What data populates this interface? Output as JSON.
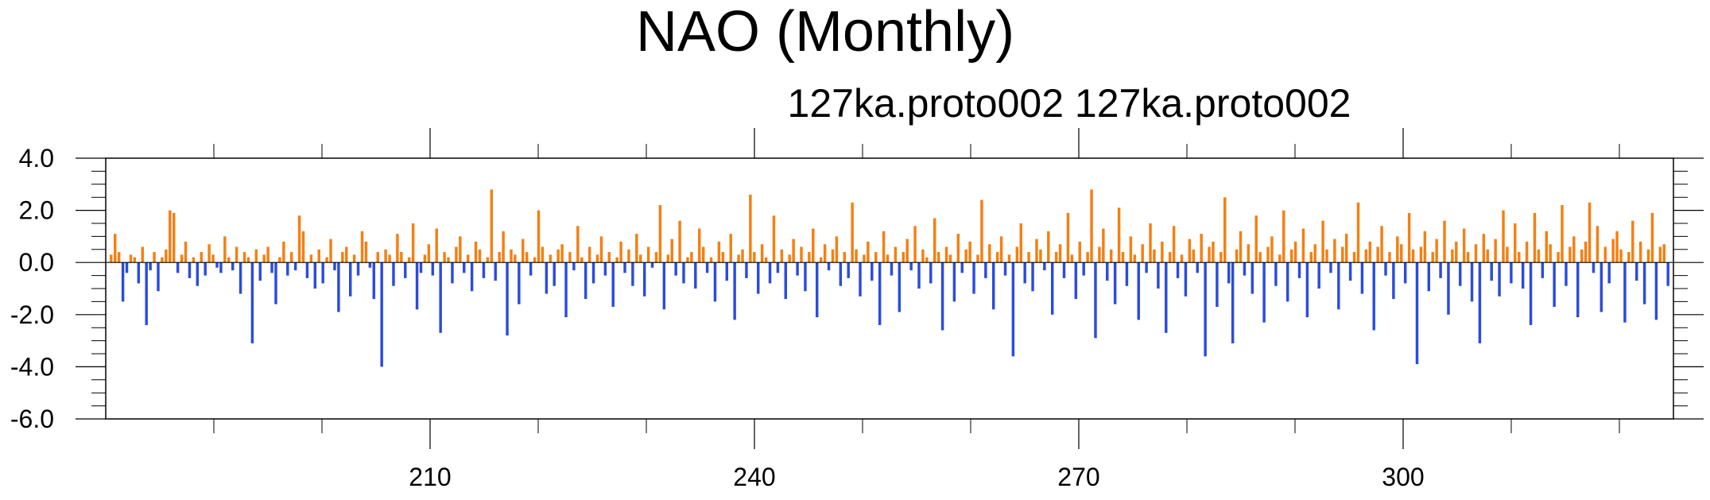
{
  "chart_data": {
    "type": "bar",
    "title": "NAO (Monthly)",
    "subtitle": "127ka.proto002  127ka.proto002",
    "xlim": [
      180,
      325
    ],
    "ylim": [
      -6.0,
      4.0
    ],
    "x_ticks": [
      210,
      240,
      270,
      300
    ],
    "y_ticks": [
      "4.0",
      "2.0",
      "0.0",
      "-2.0",
      "-4.0",
      "-6.0"
    ],
    "y_tick_values": [
      4.0,
      2.0,
      0.0,
      -2.0,
      -4.0,
      -6.0
    ],
    "colors": {
      "positive": "#f57f10",
      "negative": "#2a4be0",
      "axis": "#000000"
    },
    "sampling": "monthly",
    "series": [
      {
        "values": [
          0.3,
          1.1,
          0.4,
          -1.5,
          -0.4,
          0.3,
          0.2,
          -0.8,
          0.6,
          -2.4,
          -0.3,
          0.4,
          -1.1,
          0.2,
          0.5,
          2.0,
          1.9,
          -0.4,
          0.3,
          0.8,
          -0.6,
          0.2,
          -0.9,
          0.4,
          -0.5,
          0.7,
          0.3,
          -0.2,
          -0.4,
          1.0,
          0.2,
          -0.3,
          0.6,
          -1.2,
          0.4,
          0.2,
          -3.1,
          0.5,
          -0.7,
          0.3,
          0.6,
          -0.4,
          -1.6,
          0.2,
          0.8,
          -0.5,
          0.4,
          -0.3,
          1.8,
          1.2,
          -0.6,
          0.3,
          -1.0,
          0.5,
          -0.8,
          0.2,
          0.9,
          -0.3,
          -1.9,
          0.4,
          0.6,
          -1.3,
          0.3,
          -0.5,
          1.2,
          0.8,
          -0.2,
          -1.4,
          0.4,
          -4.0,
          0.5,
          0.3,
          -0.9,
          1.1,
          0.4,
          -0.6,
          0.2,
          1.5,
          -1.8,
          -0.4,
          0.3,
          0.7,
          -0.5,
          1.3,
          -2.7,
          0.4,
          0.2,
          -0.8,
          0.6,
          1.0,
          -0.4,
          0.3,
          -1.1,
          0.8,
          0.5,
          -0.6,
          0.2,
          2.8,
          -0.7,
          0.4,
          1.2,
          -2.8,
          0.5,
          0.3,
          -1.6,
          0.9,
          0.4,
          -0.5,
          0.2,
          2.0,
          0.6,
          -1.2,
          0.3,
          -0.9,
          0.5,
          0.7,
          -2.1,
          0.4,
          -0.3,
          1.4,
          0.2,
          -1.4,
          0.6,
          -0.8,
          0.3,
          1.0,
          -0.5,
          0.4,
          -1.7,
          0.2,
          0.8,
          -0.4,
          0.5,
          -0.9,
          1.1,
          0.3,
          -1.3,
          0.6,
          -0.2,
          0.4,
          2.2,
          -1.8,
          0.3,
          0.9,
          -0.5,
          1.6,
          -0.8,
          0.2,
          0.4,
          -1.0,
          1.3,
          0.6,
          -0.4,
          0.2,
          -1.5,
          0.8,
          0.4,
          -0.7,
          1.1,
          -2.2,
          0.3,
          0.5,
          -0.6,
          2.6,
          0.4,
          -1.2,
          0.7,
          0.2,
          -0.8,
          1.8,
          -0.4,
          0.5,
          -1.4,
          0.3,
          0.9,
          -0.5,
          0.6,
          -1.1,
          0.4,
          1.3,
          -2.1,
          0.2,
          0.7,
          -0.3,
          0.5,
          1.0,
          -0.9,
          0.4,
          -0.6,
          2.3,
          0.5,
          -1.3,
          0.3,
          0.8,
          -0.7,
          0.4,
          -2.4,
          1.2,
          0.3,
          -0.5,
          0.6,
          -1.9,
          0.4,
          0.9,
          -0.3,
          1.4,
          -1.0,
          0.5,
          0.2,
          -0.8,
          1.7,
          0.4,
          -2.6,
          0.6,
          0.3,
          -1.5,
          1.1,
          -0.4,
          0.5,
          0.8,
          -1.2,
          0.3,
          2.4,
          -0.6,
          0.7,
          -1.8,
          0.4,
          1.0,
          -0.5,
          0.3,
          -3.6,
          0.6,
          1.5,
          -0.8,
          0.4,
          -1.1,
          0.9,
          0.5,
          -0.3,
          1.2,
          -2.0,
          0.4,
          0.7,
          -0.6,
          1.9,
          0.3,
          -1.4,
          0.8,
          -0.5,
          0.4,
          2.8,
          -2.9,
          0.6,
          1.3,
          -0.7,
          0.5,
          -1.6,
          2.1,
          0.4,
          -0.9,
          1.0,
          0.3,
          -2.2,
          0.7,
          -0.4,
          1.5,
          0.5,
          -1.0,
          0.8,
          -2.7,
          0.4,
          1.4,
          -0.6,
          0.3,
          -1.3,
          0.9,
          0.5,
          -0.4,
          1.1,
          -3.6,
          0.6,
          0.8,
          -1.7,
          0.4,
          2.5,
          -0.8,
          -3.1,
          0.5,
          1.2,
          -0.5,
          0.7,
          -1.2,
          1.8,
          0.4,
          -2.3,
          0.6,
          1.0,
          -0.9,
          0.3,
          2.0,
          -1.5,
          0.5,
          0.8,
          -0.6,
          1.3,
          -2.1,
          0.4,
          0.7,
          -1.0,
          1.6,
          0.5,
          -0.4,
          0.9,
          -1.8,
          0.6,
          1.1,
          -0.7,
          0.4,
          2.3,
          -1.2,
          0.5,
          0.8,
          -2.6,
          0.6,
          1.4,
          -0.5,
          0.4,
          -1.4,
          1.0,
          0.7,
          -0.8,
          1.9,
          0.5,
          -3.9,
          0.6,
          1.2,
          -1.1,
          0.4,
          0.9,
          -0.6,
          1.6,
          -2.0,
          0.5,
          0.8,
          -0.9,
          1.3,
          0.4,
          -1.5,
          0.7,
          -3.1,
          1.1,
          0.5,
          -0.7,
          0.9,
          -1.3,
          2.0,
          0.6,
          -0.8,
          1.5,
          0.4,
          -1.0,
          0.8,
          -2.4,
          1.9,
          0.5,
          -0.6,
          1.2,
          0.7,
          -1.7,
          0.4,
          2.2,
          -0.9,
          0.6,
          1.0,
          -2.1,
          0.5,
          0.8,
          2.3,
          -0.4,
          1.4,
          -1.9,
          0.6,
          -0.8,
          0.9,
          1.2,
          0.5,
          -2.3,
          0.4,
          1.6,
          -0.7,
          0.8,
          -1.6,
          0.5,
          1.9,
          -2.2,
          0.6,
          0.7,
          -0.9
        ]
      }
    ]
  }
}
